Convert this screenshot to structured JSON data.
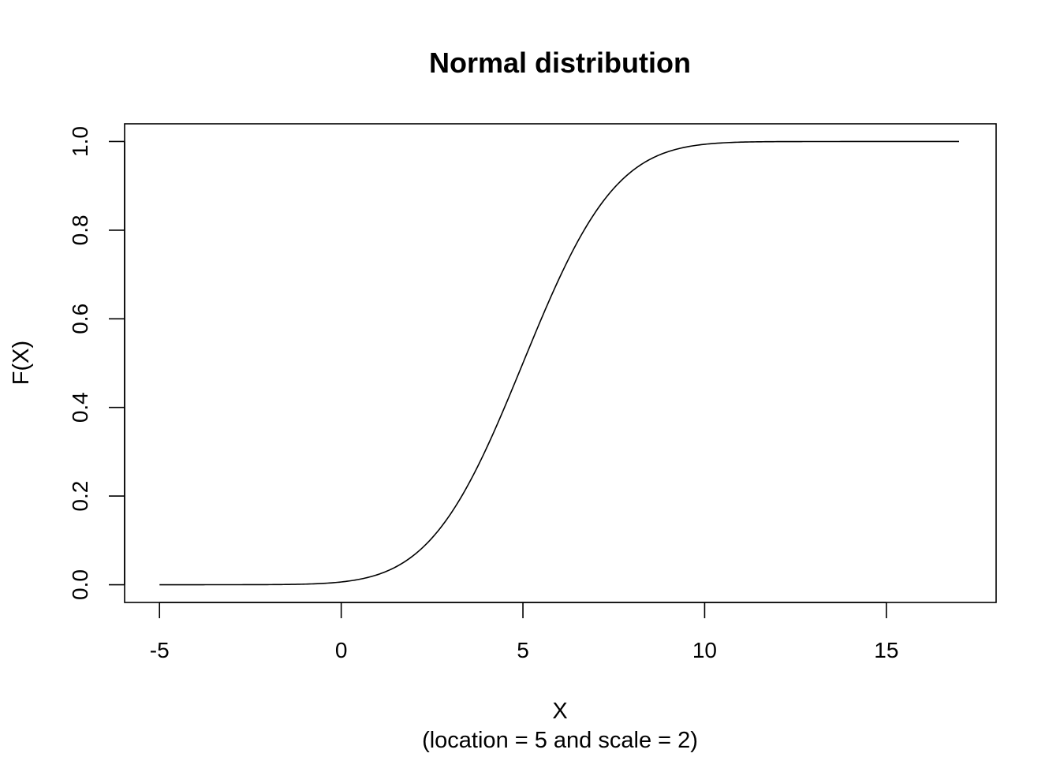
{
  "chart_data": {
    "type": "line",
    "title": "Normal distribution",
    "xlabel": "X",
    "xlabel_sub": "(location = 5 and scale = 2)",
    "ylabel": "F(X)",
    "x_ticks": [
      "-5",
      "0",
      "5",
      "10",
      "15"
    ],
    "y_ticks": [
      "0.0",
      "0.2",
      "0.4",
      "0.6",
      "0.8",
      "1.0"
    ],
    "xlim": [
      -5.96,
      18.02
    ],
    "ylim": [
      -0.04,
      1.04
    ],
    "x_range": [
      -5,
      17
    ],
    "distribution": {
      "family": "normal",
      "location": 5,
      "scale": 2
    },
    "series": [
      {
        "x": [
          -5,
          -4,
          -3,
          -2,
          -1,
          0,
          0.5,
          1,
          1.5,
          2,
          2.5,
          3,
          3.5,
          4,
          4.5,
          5,
          5.5,
          6,
          6.5,
          7,
          7.5,
          8,
          8.5,
          9,
          9.5,
          10,
          11,
          12,
          13,
          14,
          15,
          16,
          17
        ],
        "values": [
          0.0,
          0.0,
          0.0,
          0.0002,
          0.0013,
          0.0062,
          0.0122,
          0.0228,
          0.0401,
          0.0668,
          0.1056,
          0.1587,
          0.2266,
          0.3085,
          0.4013,
          0.5,
          0.5987,
          0.6915,
          0.7734,
          0.8413,
          0.8944,
          0.9332,
          0.9599,
          0.9772,
          0.9878,
          0.9938,
          0.9987,
          0.9998,
          1.0,
          1.0,
          1.0,
          1.0,
          1.0
        ]
      }
    ],
    "colors": {
      "line": "#000000",
      "axis": "#000000",
      "background": "#ffffff"
    }
  }
}
